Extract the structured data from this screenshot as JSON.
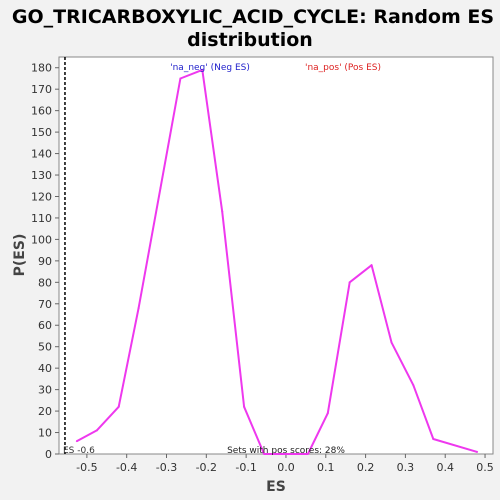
{
  "chart_data": {
    "type": "line",
    "title_line1": "GO_TRICARBOXYLIC_ACID_CYCLE: Random ES",
    "title_line2": "distribution",
    "xlabel": "ES",
    "ylabel": "P(ES)",
    "xlim": [
      -0.57,
      0.52
    ],
    "ylim": [
      0,
      185
    ],
    "xticks": [
      -0.5,
      -0.4,
      -0.3,
      -0.2,
      -0.1,
      0.0,
      0.1,
      0.2,
      0.3,
      0.4,
      0.5
    ],
    "xtick_labels": [
      "-0.5",
      "-0.4",
      "-0.3",
      "-0.2",
      "-0.1",
      "0.0",
      "0.1",
      "0.2",
      "0.3",
      "0.4",
      "0.5"
    ],
    "yticks": [
      0,
      10,
      20,
      30,
      40,
      50,
      60,
      70,
      80,
      90,
      100,
      110,
      120,
      130,
      140,
      150,
      160,
      170,
      180
    ],
    "series": [
      {
        "color": "#ee38ee",
        "x": [
          -0.525,
          -0.475,
          -0.42,
          -0.37,
          -0.315,
          -0.265,
          -0.21,
          -0.16,
          -0.105,
          -0.055,
          0.055,
          0.105,
          0.16,
          0.215,
          0.265,
          0.32,
          0.37,
          0.48
        ],
        "y": [
          6,
          11,
          22,
          68,
          124,
          175,
          179,
          113,
          22,
          0,
          0,
          19,
          80,
          88,
          52,
          32,
          7,
          1
        ]
      }
    ],
    "marker_line": {
      "x": -0.555,
      "label": "ES -0.6"
    },
    "legend": [
      {
        "text": "'na_neg' (Neg ES)",
        "color": "#2222cc"
      },
      {
        "text": "'na_pos' (Pos ES)",
        "color": "#dd2222"
      }
    ],
    "annotation": "Sets with pos scores: 28%",
    "grid": false
  }
}
